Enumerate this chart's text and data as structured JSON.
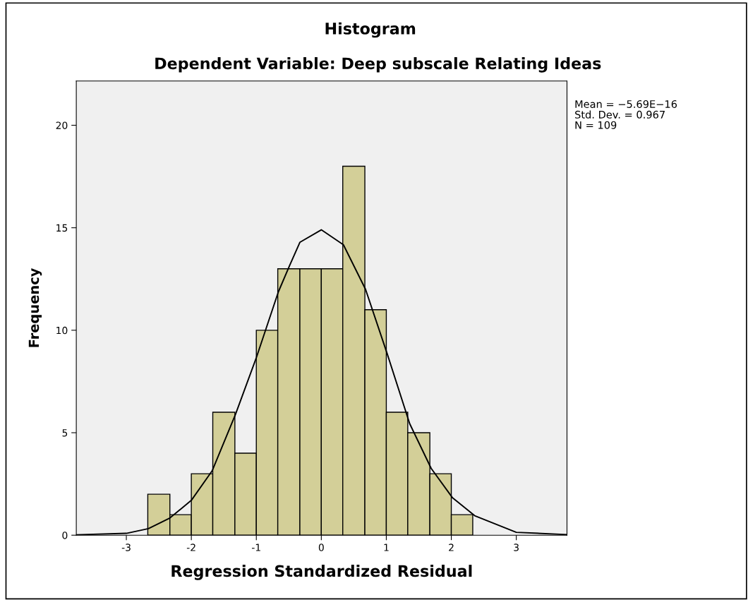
{
  "chart_data": {
    "type": "histogram",
    "title": "Histogram",
    "subtitle": "Dependent Variable: Deep subscale Relating Ideas",
    "xlabel": "Regression Standardized Residual",
    "ylabel": "Frequency",
    "bins": [
      -2.67,
      -2.33,
      -2.0,
      -1.67,
      -1.33,
      -1.0,
      -0.67,
      -0.33,
      0.0,
      0.33,
      0.67,
      1.0,
      1.33,
      1.67,
      2.0,
      2.33
    ],
    "values": [
      2,
      1,
      3,
      6,
      4,
      10,
      13,
      13,
      13,
      18,
      11,
      6,
      5,
      3,
      1
    ],
    "color": "#d3cf98",
    "series": [
      {
        "type": "line",
        "color": "#000000",
        "x": [
          -3.77,
          -3.0,
          -2.66,
          -2.33,
          -2.0,
          -1.68,
          -1.32,
          -1.0,
          -0.66,
          -0.49,
          -0.33,
          0.0,
          0.34,
          0.68,
          1.01,
          1.36,
          1.69,
          2.02,
          2.36,
          3.0,
          3.78
        ],
        "values": [
          0.02,
          0.09,
          0.32,
          0.84,
          1.7,
          3.14,
          5.9,
          8.66,
          11.88,
          13.14,
          14.29,
          14.9,
          14.17,
          12.0,
          8.89,
          5.44,
          3.26,
          1.82,
          0.95,
          0.14,
          0.03
        ]
      }
    ],
    "xlim": [
      -3.77,
      3.78
    ],
    "ylim": [
      0,
      22.16
    ],
    "xticks": [
      -3,
      -2,
      -1,
      0,
      1,
      2,
      3
    ],
    "yticks": [
      0,
      5,
      10,
      15,
      20
    ],
    "grid": false,
    "legend": false,
    "annotations": [
      "Mean = −5.69E−16",
      "Std. Dev. = 0.967",
      "N = 109"
    ]
  }
}
